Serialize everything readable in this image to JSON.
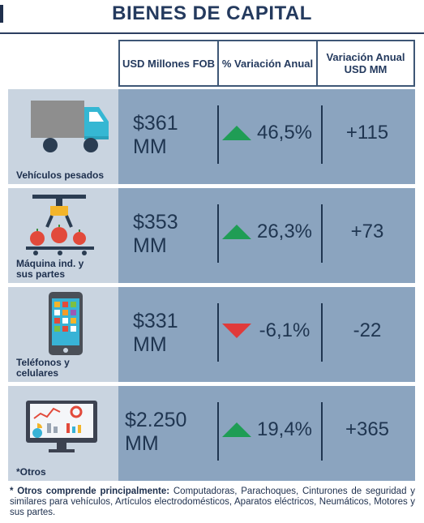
{
  "title": "BIENES DE CAPITAL",
  "headers": {
    "col1": "USD Millones FOB",
    "col2": "% Variación Anual",
    "col3": "Variación Anual USD MM"
  },
  "rows": [
    {
      "label": "Vehículos pesados",
      "value": "$361 MM",
      "pct": "46,5%",
      "trend": "up",
      "variation": "+115",
      "icon": "truck-icon"
    },
    {
      "label": "Máquina ind. y sus partes",
      "value": "$353 MM",
      "pct": "26,3%",
      "trend": "up",
      "variation": "+73",
      "icon": "robotic-arm-icon"
    },
    {
      "label": "Teléfonos y celulares",
      "value": "$331 MM",
      "pct": "-6,1%",
      "trend": "down",
      "variation": "-22",
      "icon": "smartphone-icon"
    },
    {
      "label": "*Otros",
      "value": "$2.250 MM",
      "pct": "19,4%",
      "trend": "up",
      "variation": "+365",
      "icon": "computer-monitor-icon"
    }
  ],
  "footnote": {
    "prefix": "* Otros comprende principalmente:",
    "text": " Computadoras, Parachoques, Cinturones de seguridad y similares para vehículos, Artículos electrodomésticos, Aparatos eléctricos, Neumáticos, Motores y sus partes."
  },
  "colors": {
    "up": "#1f9d55",
    "down": "#e03a3a",
    "data_bg": "#8ba4bf",
    "icon_bg": "#c9d4e0"
  }
}
